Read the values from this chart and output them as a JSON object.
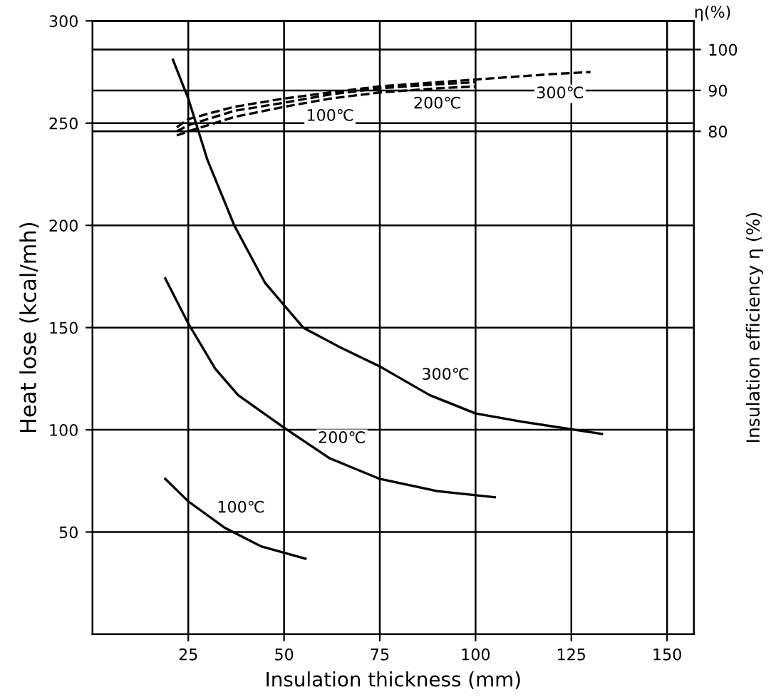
{
  "chart_data": {
    "type": "line",
    "xlabel": "Insulation thickness (mm)",
    "ylabel": "Heat lose (kcal/mh)",
    "y2label": "Insulation efficiency η (%)",
    "annotations": [
      "η(%)"
    ],
    "xlim": [
      0,
      157
    ],
    "xticks": [
      25,
      50,
      75,
      100,
      125,
      150
    ],
    "ylim": [
      0,
      300
    ],
    "yticks": [
      50,
      100,
      150,
      200,
      250,
      300
    ],
    "y2lim": [
      -43,
      107
    ],
    "y2ticks": [
      80,
      90,
      100
    ],
    "grid": true,
    "line_style": "solid",
    "series": [
      {
        "name": "100℃",
        "color": "#000000",
        "x": [
          19,
          25,
          34.6,
          44,
          55.6
        ],
        "values": [
          76,
          65,
          52,
          43,
          37
        ]
      },
      {
        "name": "200℃",
        "color": "#000000",
        "x": [
          19,
          25,
          32,
          38,
          50,
          62,
          75,
          90,
          105
        ],
        "values": [
          174,
          152,
          130,
          117,
          101,
          86,
          76,
          70,
          67
        ]
      },
      {
        "name": "300℃",
        "color": "#000000",
        "x": [
          21,
          25,
          27,
          30,
          37,
          45,
          55,
          65,
          75,
          88,
          100,
          112,
          133
        ],
        "values": [
          281,
          262,
          250,
          232,
          200,
          172,
          150,
          140,
          131,
          117,
          108,
          104,
          98
        ]
      },
      {
        "name": "100℃",
        "color": "#000000",
        "axis": "y2",
        "line_style": "dashed",
        "x": [
          22,
          25,
          37,
          50,
          62,
          75,
          90,
          100
        ],
        "values": [
          79,
          80,
          83.5,
          86,
          88,
          89.5,
          90.5,
          91
        ]
      },
      {
        "name": "200℃",
        "color": "#000000",
        "axis": "y2",
        "line_style": "dashed",
        "x": [
          22,
          25,
          37,
          50,
          62,
          75,
          90,
          100
        ],
        "values": [
          80,
          81.5,
          85,
          87,
          89,
          90.5,
          91.5,
          92
        ]
      },
      {
        "name": "300℃",
        "color": "#000000",
        "axis": "y2",
        "line_style": "dashed",
        "x": [
          22,
          25,
          37,
          50,
          62,
          75,
          90,
          105,
          120,
          130
        ],
        "values": [
          81,
          83,
          86,
          88,
          89.5,
          91,
          92,
          93,
          94,
          94.5
        ]
      }
    ]
  }
}
